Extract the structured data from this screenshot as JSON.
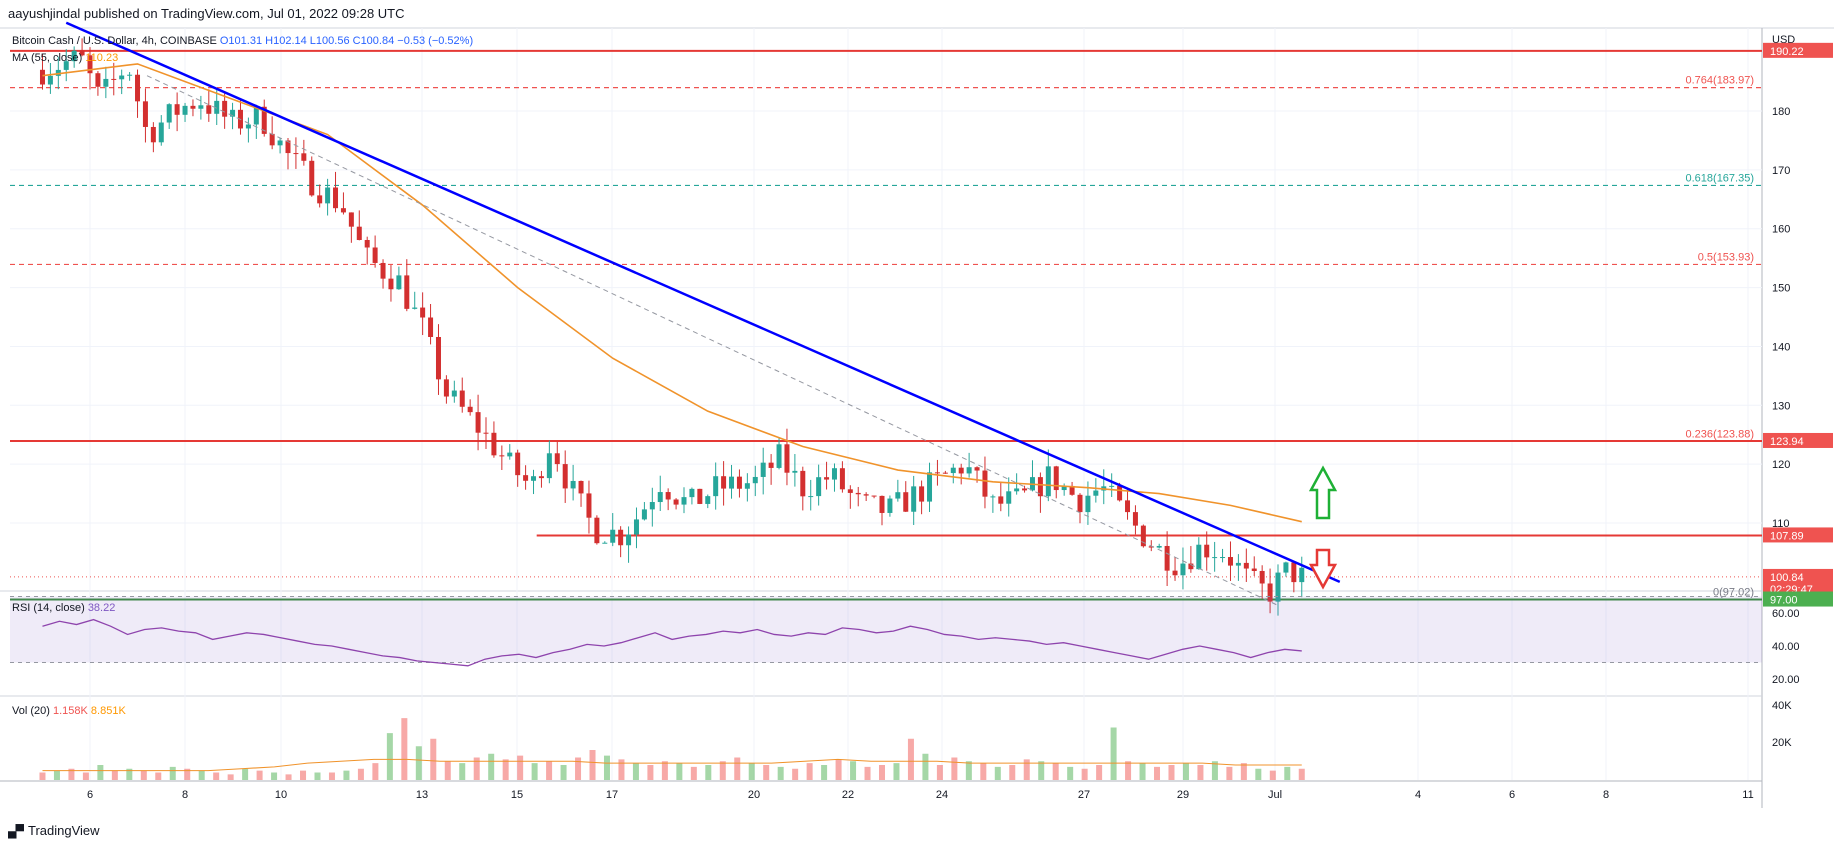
{
  "header": {
    "published": "aayushjindal published on TradingView.com, Jul 01, 2022 09:28 UTC"
  },
  "footer": {
    "brand": "TradingView",
    "logo_icon": "tradingview-logo-icon"
  },
  "instrument": {
    "title": "Bitcoin Cash / U.S. Dollar, 4h, COINBASE",
    "open": "O101.31",
    "high": "H102.14",
    "low": "L100.56",
    "close": "C100.84",
    "change": "−0.53 (−0.52%)"
  },
  "ma_legend": {
    "label": "MA (55, close)",
    "value": "110.23"
  },
  "rsi_legend": {
    "label": "RSI (14, close)",
    "value": "38.22"
  },
  "vol_legend": {
    "label": "Vol (20)",
    "value1": "1.158K",
    "value2": "8.851K"
  },
  "currency": "USD",
  "price_axis": {
    "ticks": [
      180,
      170,
      160,
      150,
      140,
      130,
      120,
      110
    ]
  },
  "rsi_axis": {
    "ticks": [
      60,
      40,
      20
    ],
    "band": [
      30,
      70
    ]
  },
  "vol_axis": {
    "ticks": [
      "40K",
      "20K"
    ]
  },
  "x_axis": {
    "ticks": [
      "6",
      "8",
      "10",
      "13",
      "15",
      "17",
      "20",
      "22",
      "24",
      "27",
      "29",
      "Jul",
      "4",
      "6",
      "8",
      "11"
    ]
  },
  "fib_levels": [
    {
      "label": "0.764(183.97)",
      "price": 183.97,
      "color": "#ef5350"
    },
    {
      "label": "0.618(167.35)",
      "price": 167.35,
      "color": "#26a69a"
    },
    {
      "label": "0.5(153.93)",
      "price": 153.93,
      "color": "#ef5350"
    },
    {
      "label": "0.236(123.88)",
      "price": 123.88,
      "color": "#ef5350"
    },
    {
      "label": "0(97.02)",
      "price": 97.02,
      "color": "#787b86"
    }
  ],
  "price_badges": [
    {
      "label": "190.22",
      "price": 190.22,
      "color": "#ef5350"
    },
    {
      "label": "123.94",
      "price": 123.94,
      "color": "#ef5350"
    },
    {
      "label": "107.89",
      "price": 107.89,
      "color": "#ef5350"
    },
    {
      "label": "100.84",
      "sub": "02:29:47",
      "price": 100.84,
      "color": "#ef5350"
    },
    {
      "label": "97.00",
      "price": 97.0,
      "color": "#4caf50"
    }
  ],
  "colors": {
    "up": "#26a69a",
    "down": "#d32f2f",
    "trendline": "#0000ff",
    "ma": "#f0932b",
    "rsi": "#8e44ad",
    "support": "#388e3c",
    "resistance": "#e53935"
  },
  "chart_data": {
    "type": "candlestick",
    "symbol": "BCHUSD",
    "timeframe": "4h",
    "ylim": [
      93,
      193
    ],
    "close_path": [
      {
        "day": 5.0,
        "price": 187
      },
      {
        "day": 5.8,
        "price": 189
      },
      {
        "day": 6.2,
        "price": 182
      },
      {
        "day": 6.8,
        "price": 188
      },
      {
        "day": 7.2,
        "price": 176
      },
      {
        "day": 7.8,
        "price": 180
      },
      {
        "day": 8.3,
        "price": 182
      },
      {
        "day": 9.0,
        "price": 178
      },
      {
        "day": 9.6,
        "price": 179
      },
      {
        "day": 10.2,
        "price": 172
      },
      {
        "day": 10.8,
        "price": 167
      },
      {
        "day": 11.3,
        "price": 164
      },
      {
        "day": 11.8,
        "price": 155
      },
      {
        "day": 12.5,
        "price": 151
      },
      {
        "day": 13.0,
        "price": 143
      },
      {
        "day": 13.5,
        "price": 132
      },
      {
        "day": 14.2,
        "price": 126
      },
      {
        "day": 14.8,
        "price": 120
      },
      {
        "day": 15.3,
        "price": 116
      },
      {
        "day": 15.7,
        "price": 124
      },
      {
        "day": 16.1,
        "price": 116
      },
      {
        "day": 16.6,
        "price": 109
      },
      {
        "day": 17.2,
        "price": 108
      },
      {
        "day": 17.6,
        "price": 112
      },
      {
        "day": 18.0,
        "price": 117
      },
      {
        "day": 18.6,
        "price": 113
      },
      {
        "day": 19.2,
        "price": 116
      },
      {
        "day": 20.0,
        "price": 117
      },
      {
        "day": 20.5,
        "price": 121
      },
      {
        "day": 21.0,
        "price": 116
      },
      {
        "day": 21.6,
        "price": 118
      },
      {
        "day": 22.2,
        "price": 113
      },
      {
        "day": 22.8,
        "price": 112
      },
      {
        "day": 23.4,
        "price": 115
      },
      {
        "day": 24.0,
        "price": 118
      },
      {
        "day": 24.4,
        "price": 120
      },
      {
        "day": 25.0,
        "price": 113
      },
      {
        "day": 25.6,
        "price": 114
      },
      {
        "day": 26.2,
        "price": 118
      },
      {
        "day": 26.8,
        "price": 114
      },
      {
        "day": 27.3,
        "price": 116
      },
      {
        "day": 27.8,
        "price": 111
      },
      {
        "day": 28.4,
        "price": 106
      },
      {
        "day": 28.9,
        "price": 103
      },
      {
        "day": 29.4,
        "price": 106
      },
      {
        "day": 29.9,
        "price": 105
      },
      {
        "day": 30.4,
        "price": 100
      },
      {
        "day": 30.8,
        "price": 98
      },
      {
        "day": 31.2,
        "price": 102
      },
      {
        "day": 31.5,
        "price": 100.84
      }
    ],
    "ma_55": [
      {
        "day": 5.0,
        "price": 186
      },
      {
        "day": 7.0,
        "price": 188
      },
      {
        "day": 9.0,
        "price": 182
      },
      {
        "day": 11.0,
        "price": 176
      },
      {
        "day": 13.0,
        "price": 164
      },
      {
        "day": 15.0,
        "price": 150
      },
      {
        "day": 17.0,
        "price": 138
      },
      {
        "day": 19.0,
        "price": 129
      },
      {
        "day": 21.0,
        "price": 123
      },
      {
        "day": 23.0,
        "price": 119
      },
      {
        "day": 25.0,
        "price": 117
      },
      {
        "day": 27.0,
        "price": 116
      },
      {
        "day": 28.5,
        "price": 115
      },
      {
        "day": 30.0,
        "price": 113
      },
      {
        "day": 31.5,
        "price": 110.23
      }
    ],
    "trendline": {
      "from": {
        "day": 5.5,
        "price": 195
      },
      "to": {
        "day": 32.3,
        "price": 100
      }
    },
    "dashed_channel": {
      "from": {
        "day": 7.2,
        "price": 186
      },
      "to": {
        "day": 31.0,
        "price": 96
      }
    },
    "support_line": {
      "price": 97.0
    },
    "resistance_line": {
      "price": 107.89,
      "from_day": 15.4
    },
    "top_line": {
      "price": 190.22
    },
    "fib_line_123": {
      "price": 123.94
    },
    "current_price": 100.84,
    "rsi_values": [
      52,
      55,
      53,
      56,
      52,
      47,
      50,
      51,
      49,
      48,
      44,
      46,
      48,
      47,
      45,
      43,
      41,
      40,
      38,
      36,
      34,
      33,
      31,
      30,
      29,
      28,
      32,
      34,
      35,
      33,
      36,
      38,
      41,
      40,
      42,
      45,
      48,
      44,
      46,
      47,
      49,
      48,
      50,
      47,
      46,
      48,
      47,
      51,
      50,
      48,
      49,
      52,
      50,
      47,
      46,
      44,
      45,
      44,
      43,
      41,
      42,
      40,
      38,
      36,
      34,
      32,
      35,
      38,
      40,
      38,
      36,
      33,
      36,
      38,
      37
    ],
    "volume_k": [
      4,
      5,
      6,
      4,
      8,
      5,
      6,
      5,
      4,
      7,
      6,
      5,
      4,
      3,
      6,
      5,
      4,
      3,
      5,
      4,
      4,
      5,
      6,
      9,
      25,
      33,
      18,
      22,
      10,
      9,
      12,
      14,
      11,
      13,
      9,
      10,
      8,
      12,
      16,
      13,
      11,
      9,
      8,
      10,
      9,
      7,
      8,
      10,
      12,
      9,
      8,
      7,
      6,
      9,
      8,
      11,
      10,
      7,
      8,
      9,
      22,
      14,
      8,
      12,
      10,
      9,
      7,
      8,
      11,
      10,
      9,
      7,
      6,
      8,
      28,
      10,
      9,
      7,
      8,
      9,
      8,
      10,
      7,
      9,
      6,
      5,
      7,
      6
    ],
    "volume_ma_k": [
      5,
      5,
      5,
      5,
      5,
      5,
      6,
      7,
      9,
      10,
      11,
      11,
      10,
      10,
      10,
      10,
      10,
      9,
      9,
      9,
      9,
      9,
      9,
      10,
      11,
      10,
      10,
      10,
      9,
      9,
      9,
      9,
      9,
      9,
      9,
      9,
      8,
      8,
      8
    ]
  },
  "signals": {
    "up_arrow": "up-arrow-icon",
    "down_arrow": "down-arrow-icon"
  }
}
